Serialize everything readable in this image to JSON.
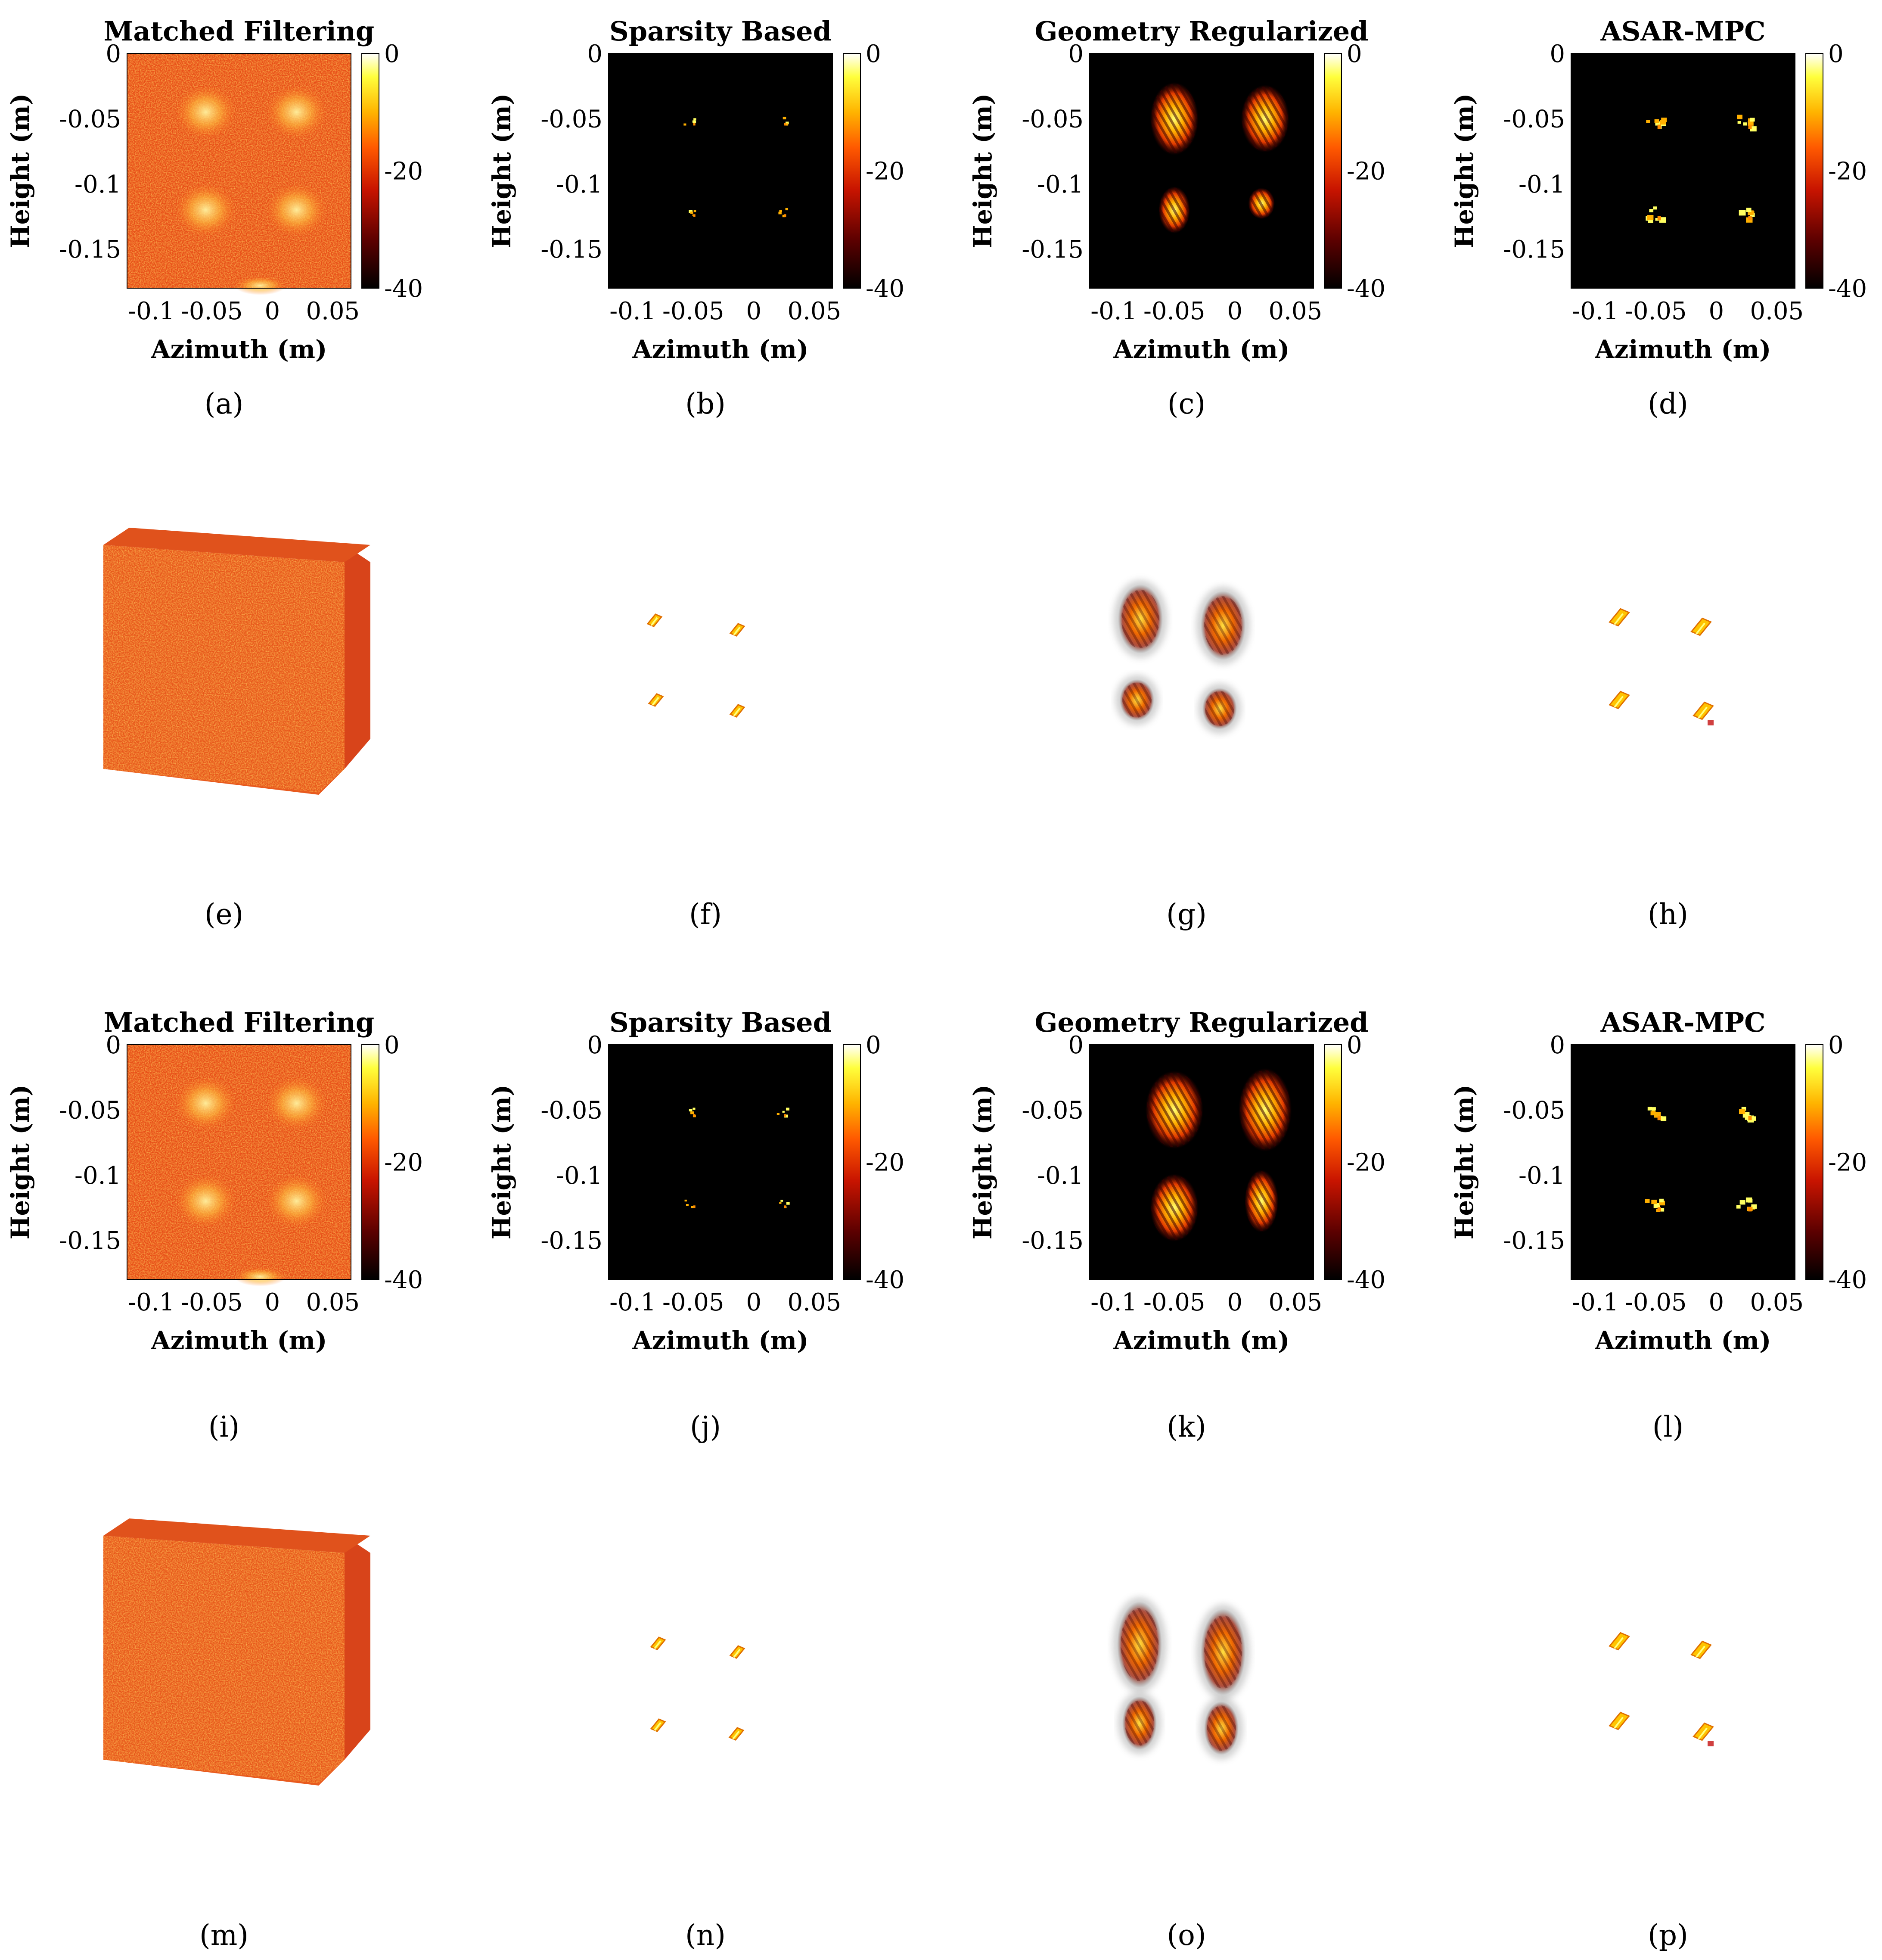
{
  "figure": {
    "description_labels": [
      "(a)",
      "(b)",
      "(c)",
      "(d)",
      "(e)",
      "(f)",
      "(g)",
      "(h)",
      "(i)",
      "(j)",
      "(k)",
      "(l)",
      "(m)",
      "(n)",
      "(o)",
      "(p)"
    ]
  },
  "colors": {
    "colormap": [
      "#000000",
      "#5a0000",
      "#c81400",
      "#ff5a00",
      "#ffb400",
      "#ffff3c",
      "#ffffff"
    ],
    "matched_bg": "#e8501a"
  },
  "chart_data": [
    {
      "id": "a",
      "type": "heatmap",
      "title": "Matched Filtering",
      "xlabel": "Azimuth (m)",
      "ylabel": "Height (m)",
      "xlim": [
        -0.12,
        0.065
      ],
      "ylim": [
        -0.18,
        0
      ],
      "xticks": [
        -0.1,
        -0.05,
        0,
        0.05
      ],
      "xtick_labels": [
        "-0.1",
        "-0.05",
        "0",
        "0.05"
      ],
      "yticks": [
        0,
        -0.05,
        -0.1,
        -0.15
      ],
      "ytick_labels": [
        "0",
        "-0.05",
        "-0.1",
        "-0.15"
      ],
      "colorbar": {
        "range": [
          -40,
          0
        ],
        "ticks": [
          0,
          -20,
          -40
        ],
        "tick_labels": [
          "0",
          "-20",
          "-40"
        ]
      },
      "style": "noise",
      "blobs": [
        {
          "x": -0.055,
          "y": -0.045
        },
        {
          "x": 0.02,
          "y": -0.045
        },
        {
          "x": -0.055,
          "y": -0.12
        },
        {
          "x": 0.02,
          "y": -0.12
        }
      ],
      "label": "(a)"
    },
    {
      "id": "b",
      "type": "heatmap",
      "title": "Sparsity Based",
      "xlabel": "Azimuth (m)",
      "ylabel": "Height (m)",
      "xlim": [
        -0.12,
        0.065
      ],
      "ylim": [
        -0.18,
        0
      ],
      "xticks": [
        -0.1,
        -0.05,
        0,
        0.05
      ],
      "xtick_labels": [
        "-0.1",
        "-0.05",
        "0",
        "0.05"
      ],
      "yticks": [
        0,
        -0.05,
        -0.1,
        -0.15
      ],
      "ytick_labels": [
        "0",
        "-0.05",
        "-0.1",
        "-0.15"
      ],
      "colorbar": {
        "range": [
          -40,
          0
        ],
        "ticks": [
          0,
          -20,
          -40
        ],
        "tick_labels": [
          "0",
          "-20",
          "-40"
        ]
      },
      "style": "sparse",
      "blobs": [
        {
          "x": -0.055,
          "y": -0.05
        },
        {
          "x": 0.02,
          "y": -0.05
        },
        {
          "x": -0.055,
          "y": -0.12
        },
        {
          "x": 0.02,
          "y": -0.12
        }
      ],
      "label": "(b)"
    },
    {
      "id": "c",
      "type": "heatmap",
      "title": "Geometry Regularized",
      "xlabel": "Azimuth (m)",
      "ylabel": "Height (m)",
      "xlim": [
        -0.12,
        0.065
      ],
      "ylim": [
        -0.18,
        0
      ],
      "xticks": [
        -0.1,
        -0.05,
        0,
        0.05
      ],
      "xtick_labels": [
        "-0.1",
        "-0.05",
        "0",
        "0.05"
      ],
      "yticks": [
        0,
        -0.05,
        -0.1,
        -0.15
      ],
      "ytick_labels": [
        "0",
        "-0.05",
        "-0.1",
        "-0.15"
      ],
      "colorbar": {
        "range": [
          -40,
          0
        ],
        "ticks": [
          0,
          -20,
          -40
        ],
        "tick_labels": [
          "0",
          "-20",
          "-40"
        ]
      },
      "style": "geometry",
      "blobs": [
        {
          "x": -0.05,
          "y": -0.05,
          "rx": 0.02,
          "ry": 0.028
        },
        {
          "x": 0.025,
          "y": -0.05,
          "rx": 0.02,
          "ry": 0.026
        },
        {
          "x": -0.05,
          "y": -0.12,
          "rx": 0.013,
          "ry": 0.018
        },
        {
          "x": 0.022,
          "y": -0.115,
          "rx": 0.011,
          "ry": 0.012
        }
      ],
      "label": "(c)"
    },
    {
      "id": "d",
      "type": "heatmap",
      "title": "ASAR-MPC",
      "xlabel": "Azimuth (m)",
      "ylabel": "Height (m)",
      "xlim": [
        -0.12,
        0.065
      ],
      "ylim": [
        -0.18,
        0
      ],
      "xticks": [
        -0.1,
        -0.05,
        0,
        0.05
      ],
      "xtick_labels": [
        "-0.1",
        "-0.05",
        "0",
        "0.05"
      ],
      "yticks": [
        0,
        -0.05,
        -0.1,
        -0.15
      ],
      "ytick_labels": [
        "0",
        "-0.05",
        "-0.1",
        "-0.15"
      ],
      "colorbar": {
        "range": [
          -40,
          0
        ],
        "ticks": [
          0,
          -20,
          -40
        ],
        "tick_labels": [
          "0",
          "-20",
          "-40"
        ]
      },
      "style": "sparse2",
      "blobs": [
        {
          "x": -0.055,
          "y": -0.05
        },
        {
          "x": 0.02,
          "y": -0.05
        },
        {
          "x": -0.055,
          "y": -0.12
        },
        {
          "x": 0.02,
          "y": -0.12
        }
      ],
      "label": "(d)"
    },
    {
      "id": "e",
      "type": "volume",
      "style": "noisecube",
      "label": "(e)"
    },
    {
      "id": "f",
      "type": "volume",
      "style": "sparse",
      "label": "(f)"
    },
    {
      "id": "g",
      "type": "volume",
      "style": "geometry",
      "label": "(g)"
    },
    {
      "id": "h",
      "type": "volume",
      "style": "sparse2",
      "label": "(h)"
    },
    {
      "id": "i",
      "type": "heatmap",
      "title": "Matched Filtering",
      "xlabel": "Azimuth (m)",
      "ylabel": "Height (m)",
      "xlim": [
        -0.12,
        0.065
      ],
      "ylim": [
        -0.18,
        0
      ],
      "xticks": [
        -0.1,
        -0.05,
        0,
        0.05
      ],
      "xtick_labels": [
        "-0.1",
        "-0.05",
        "0",
        "0.05"
      ],
      "yticks": [
        0,
        -0.05,
        -0.1,
        -0.15
      ],
      "ytick_labels": [
        "0",
        "-0.05",
        "-0.1",
        "-0.15"
      ],
      "colorbar": {
        "range": [
          -40,
          0
        ],
        "ticks": [
          0,
          -20,
          -40
        ],
        "tick_labels": [
          "0",
          "-20",
          "-40"
        ]
      },
      "style": "noise",
      "blobs": [
        {
          "x": -0.055,
          "y": -0.045
        },
        {
          "x": 0.02,
          "y": -0.045
        },
        {
          "x": -0.055,
          "y": -0.12
        },
        {
          "x": 0.02,
          "y": -0.12
        }
      ],
      "label": "(i)"
    },
    {
      "id": "j",
      "type": "heatmap",
      "title": "Sparsity Based",
      "xlabel": "Azimuth (m)",
      "ylabel": "Height (m)",
      "xlim": [
        -0.12,
        0.065
      ],
      "ylim": [
        -0.18,
        0
      ],
      "xticks": [
        -0.1,
        -0.05,
        0,
        0.05
      ],
      "xtick_labels": [
        "-0.1",
        "-0.05",
        "0",
        "0.05"
      ],
      "yticks": [
        0,
        -0.05,
        -0.1,
        -0.15
      ],
      "ytick_labels": [
        "0",
        "-0.05",
        "-0.1",
        "-0.15"
      ],
      "colorbar": {
        "range": [
          -40,
          0
        ],
        "ticks": [
          0,
          -20,
          -40
        ],
        "tick_labels": [
          "0",
          "-20",
          "-40"
        ]
      },
      "style": "sparse",
      "blobs": [
        {
          "x": -0.055,
          "y": -0.05
        },
        {
          "x": 0.02,
          "y": -0.05
        },
        {
          "x": -0.055,
          "y": -0.12
        },
        {
          "x": 0.02,
          "y": -0.12
        }
      ],
      "label": "(j)"
    },
    {
      "id": "k",
      "type": "heatmap",
      "title": "Geometry Regularized",
      "xlabel": "Azimuth (m)",
      "ylabel": "Height (m)",
      "xlim": [
        -0.12,
        0.065
      ],
      "ylim": [
        -0.18,
        0
      ],
      "xticks": [
        -0.1,
        -0.05,
        0,
        0.05
      ],
      "xtick_labels": [
        "-0.1",
        "-0.05",
        "0",
        "0.05"
      ],
      "yticks": [
        0,
        -0.05,
        -0.1,
        -0.15
      ],
      "ytick_labels": [
        "0",
        "-0.05",
        "-0.1",
        "-0.15"
      ],
      "colorbar": {
        "range": [
          -40,
          0
        ],
        "ticks": [
          0,
          -20,
          -40
        ],
        "tick_labels": [
          "0",
          "-20",
          "-40"
        ]
      },
      "style": "geometry",
      "blobs": [
        {
          "x": -0.05,
          "y": -0.05,
          "rx": 0.024,
          "ry": 0.03
        },
        {
          "x": 0.025,
          "y": -0.05,
          "rx": 0.022,
          "ry": 0.032
        },
        {
          "x": -0.05,
          "y": -0.125,
          "rx": 0.02,
          "ry": 0.026
        },
        {
          "x": 0.022,
          "y": -0.12,
          "rx": 0.014,
          "ry": 0.024
        }
      ],
      "label": "(k)"
    },
    {
      "id": "l",
      "type": "heatmap",
      "title": "ASAR-MPC",
      "xlabel": "Azimuth (m)",
      "ylabel": "Height (m)",
      "xlim": [
        -0.12,
        0.065
      ],
      "ylim": [
        -0.18,
        0
      ],
      "xticks": [
        -0.1,
        -0.05,
        0,
        0.05
      ],
      "xtick_labels": [
        "-0.1",
        "-0.05",
        "0",
        "0.05"
      ],
      "yticks": [
        0,
        -0.05,
        -0.1,
        -0.15
      ],
      "ytick_labels": [
        "0",
        "-0.05",
        "-0.1",
        "-0.15"
      ],
      "colorbar": {
        "range": [
          -40,
          0
        ],
        "ticks": [
          0,
          -20,
          -40
        ],
        "tick_labels": [
          "0",
          "-20",
          "-40"
        ]
      },
      "style": "sparse2",
      "blobs": [
        {
          "x": -0.055,
          "y": -0.05
        },
        {
          "x": 0.02,
          "y": -0.05
        },
        {
          "x": -0.055,
          "y": -0.12
        },
        {
          "x": 0.02,
          "y": -0.12
        }
      ],
      "label": "(l)"
    },
    {
      "id": "m",
      "type": "volume",
      "style": "noisecube",
      "label": "(m)"
    },
    {
      "id": "n",
      "type": "volume",
      "style": "sparse",
      "label": "(n)"
    },
    {
      "id": "o",
      "type": "volume",
      "style": "geometry",
      "label": "(o)"
    },
    {
      "id": "p",
      "type": "volume",
      "style": "sparse2",
      "label": "(p)"
    }
  ]
}
